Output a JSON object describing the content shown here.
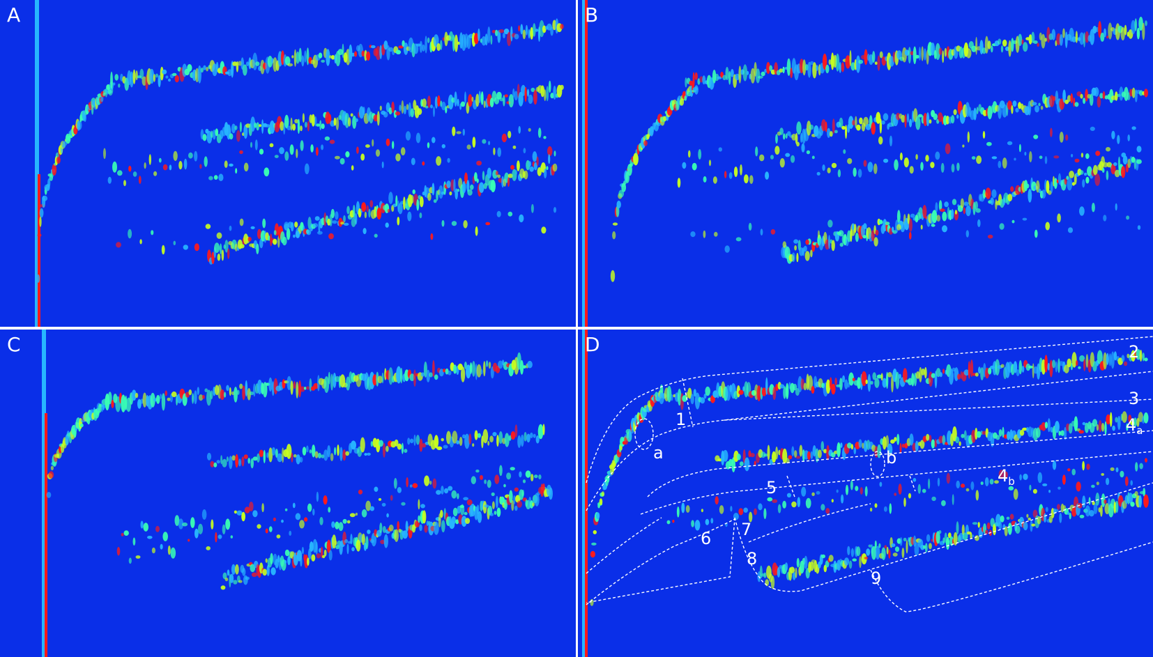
{
  "panels": [
    {
      "label": "A"
    },
    {
      "label": "B"
    },
    {
      "label": "C"
    },
    {
      "label": "D"
    }
  ],
  "regions": [
    "1",
    "2",
    "3",
    "4",
    "a",
    "4",
    "b",
    "5",
    "6",
    "7",
    "8",
    "9"
  ],
  "markers": [
    "a",
    "b"
  ],
  "colors": {
    "background": "#0a2fe8",
    "low": "#27b6ff",
    "mid": "#39ffb4",
    "high": "#c8ff1e",
    "peak": "#ff1a1a",
    "separator": "#ffffff"
  }
}
